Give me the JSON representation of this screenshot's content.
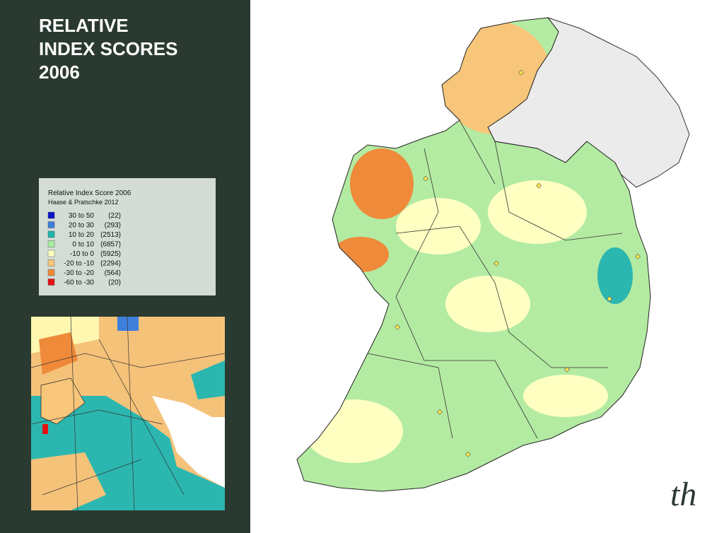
{
  "title": [
    "RELATIVE",
    "INDEX SCORES",
    "2006"
  ],
  "legend": {
    "title": "Relative Index Score 2006",
    "source": "Haase & Pratschke 2012",
    "items": [
      {
        "range": "30 to  50",
        "count": "(22)",
        "color": "#0b16c9"
      },
      {
        "range": "20 to  30",
        "count": "(293)",
        "color": "#3f7fdc"
      },
      {
        "range": "10 to  20",
        "count": "(2513)",
        "color": "#1fb6ae"
      },
      {
        "range": "0 to  10",
        "count": "(6857)",
        "color": "#a6efa0"
      },
      {
        "range": "-10 to   0",
        "count": "(5925)",
        "color": "#ffffc2"
      },
      {
        "range": "-20 to -10",
        "count": "(2294)",
        "color": "#f7c67a"
      },
      {
        "range": "-30 to -20",
        "count": "(564)",
        "color": "#ef8a3a"
      },
      {
        "range": "-60 to -30",
        "count": "(20)",
        "color": "#e51212"
      }
    ]
  },
  "logo": "th"
}
